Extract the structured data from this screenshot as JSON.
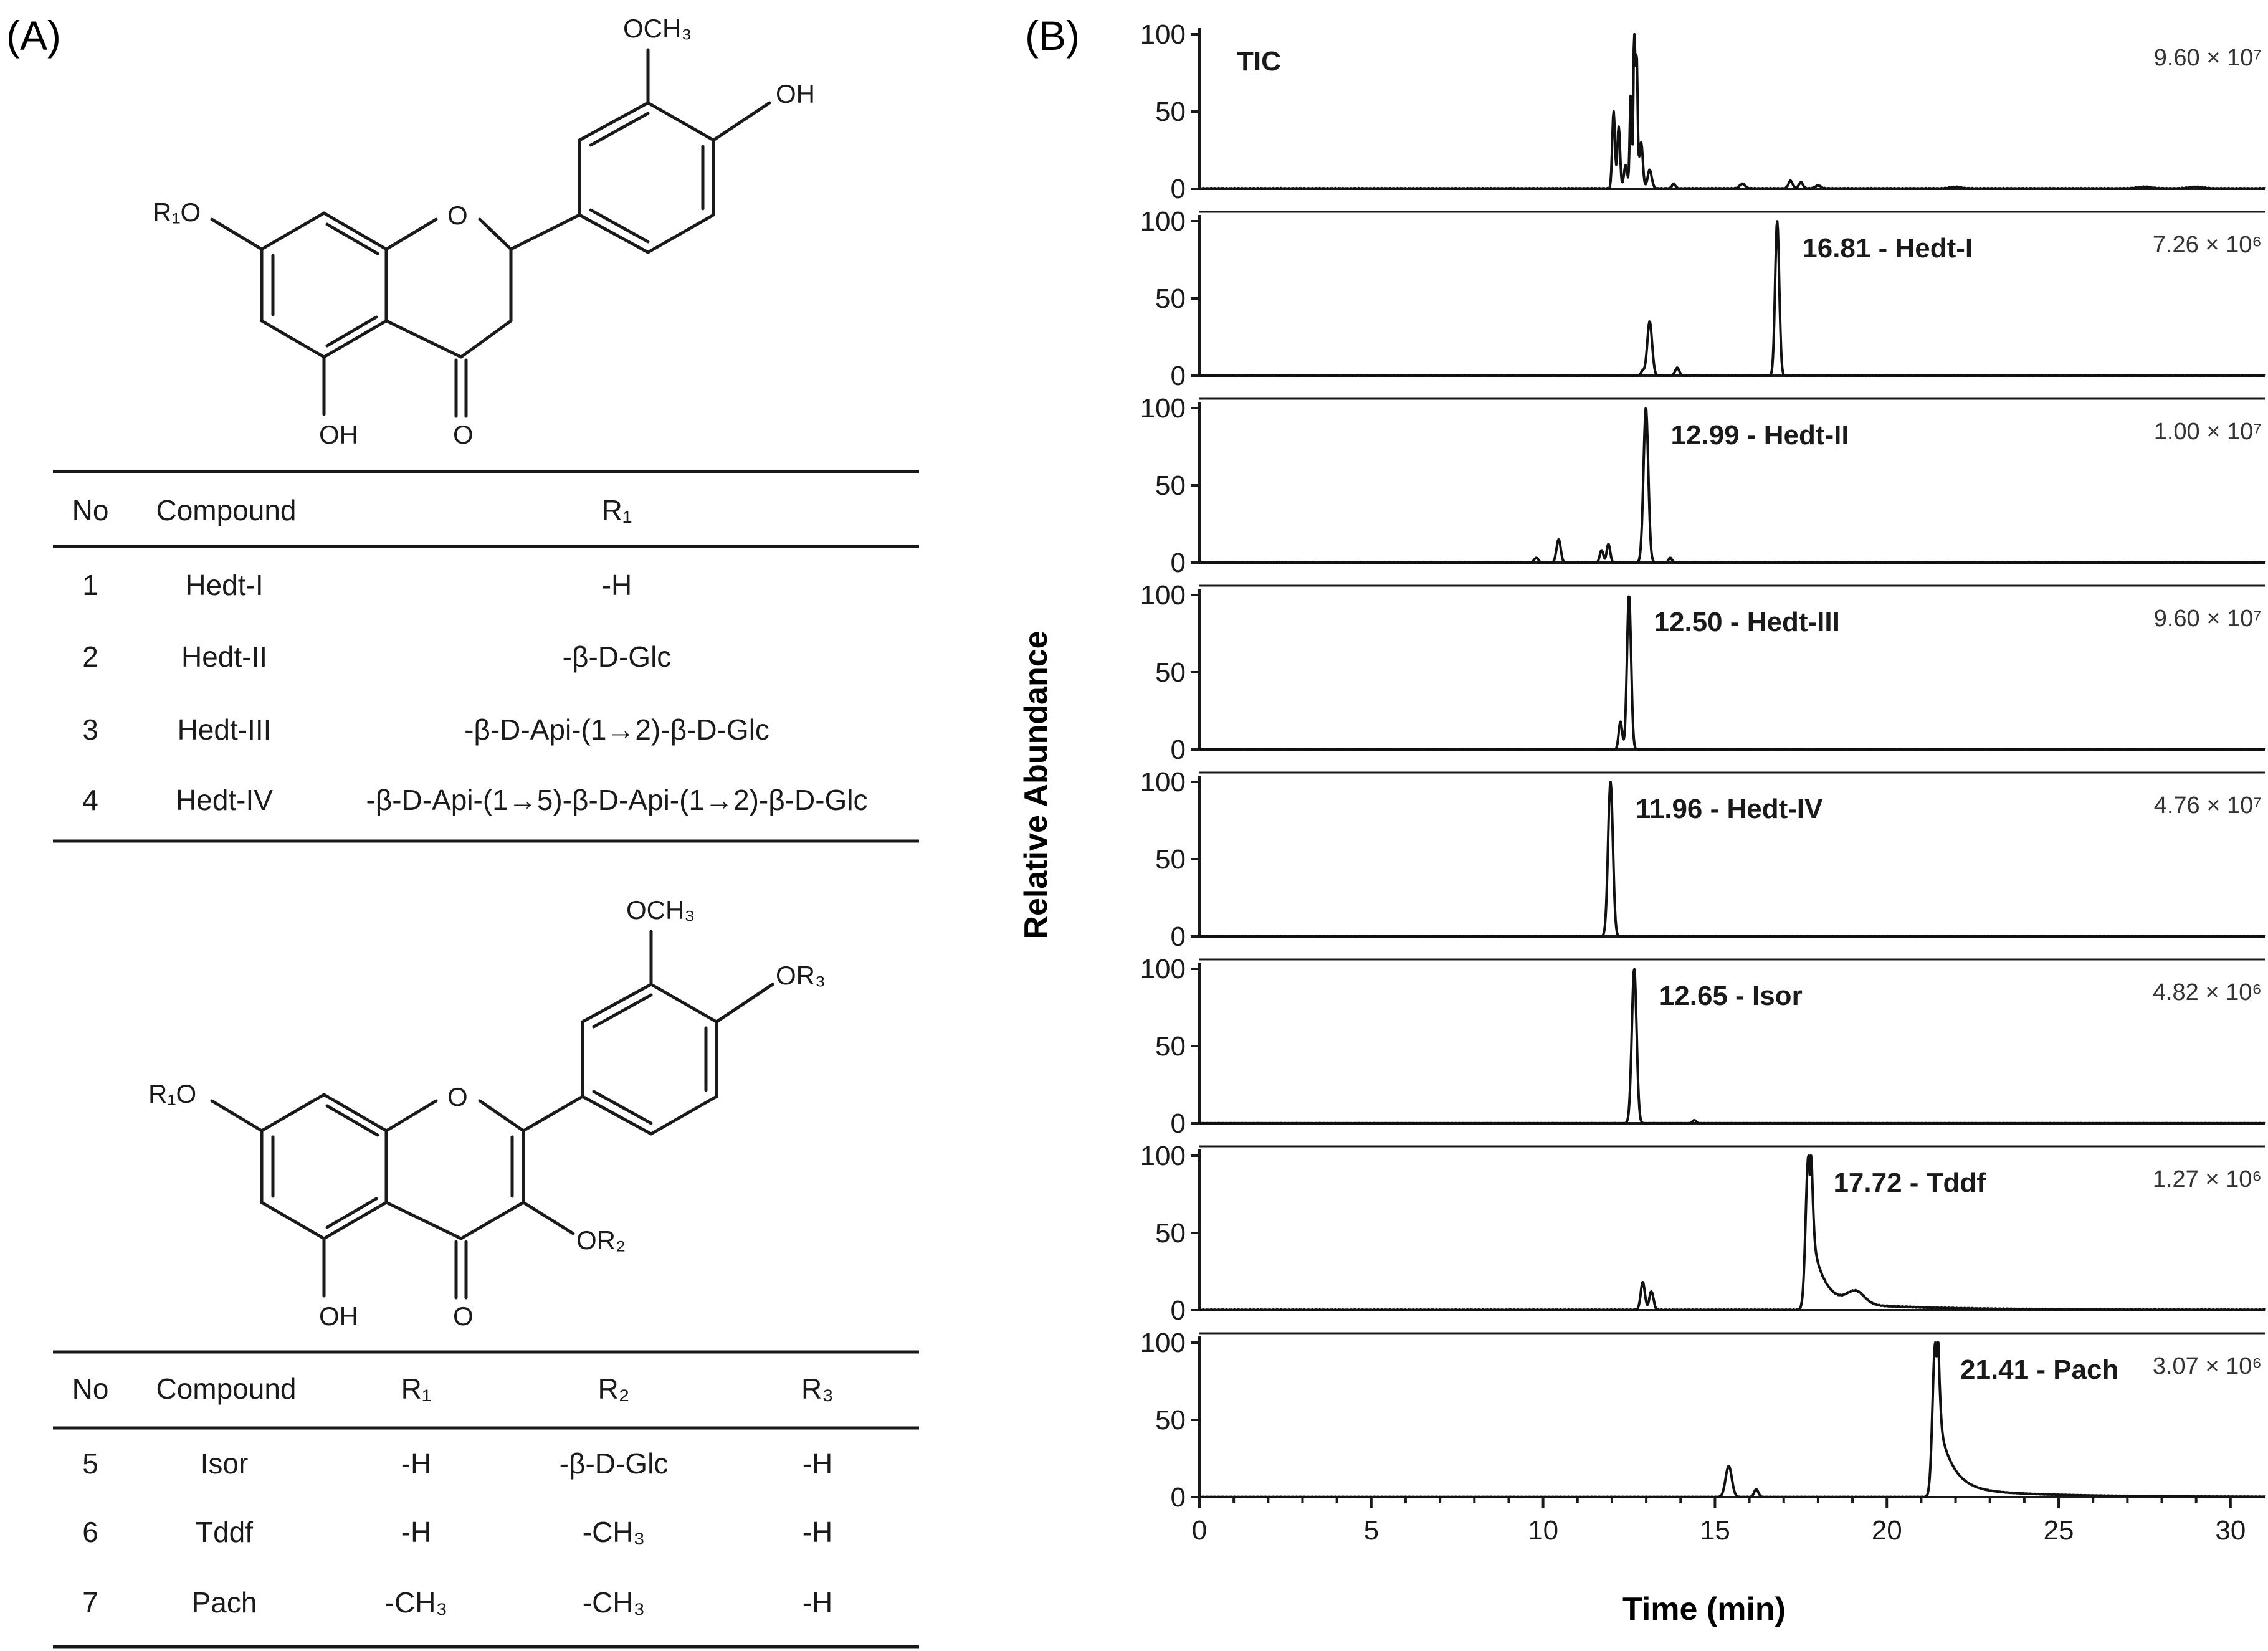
{
  "panel_a": {
    "label": "(A)",
    "structure1": {
      "substituents": {
        "r1o": "R₁O",
        "och3": "OCH₃",
        "oh_top": "OH",
        "oh_bottom": "OH",
        "o_carbonyl": "O",
        "o_ring": "O"
      }
    },
    "table1": {
      "headers": [
        "No",
        "Compound",
        "R₁"
      ],
      "rows": [
        [
          "1",
          "Hedt-I",
          "-H"
        ],
        [
          "2",
          "Hedt-II",
          "-β-D-Glc"
        ],
        [
          "3",
          "Hedt-III",
          "-β-D-Api-(1→2)-β-D-Glc"
        ],
        [
          "4",
          "Hedt-IV",
          "-β-D-Api-(1→5)-β-D-Api-(1→2)-β-D-Glc"
        ]
      ]
    },
    "structure2": {
      "substituents": {
        "r1o": "R₁O",
        "och3": "OCH₃",
        "or3": "OR₃",
        "or2": "OR₂",
        "oh_bottom": "OH",
        "o_carbonyl": "O",
        "o_ring": "O"
      }
    },
    "table2": {
      "headers": [
        "No",
        "Compound",
        "R₁",
        "R₂",
        "R₃"
      ],
      "rows": [
        [
          "5",
          "Isor",
          "-H",
          "-β-D-Glc",
          "-H"
        ],
        [
          "6",
          "Tddf",
          "-H",
          "-CH₃",
          "-H"
        ],
        [
          "7",
          "Pach",
          "-CH₃",
          "-CH₃",
          "-H"
        ]
      ]
    }
  },
  "chart_data": {
    "type": "line",
    "panel_label": "(B)",
    "xlabel": "Time (min)",
    "ylabel": "Relative Abundance",
    "xlim": [
      0,
      31
    ],
    "ylim": [
      0,
      100
    ],
    "x_ticks": [
      "0",
      "5",
      "10",
      "15",
      "20",
      "25",
      "30"
    ],
    "y_ticks": [
      "0",
      "50",
      "100"
    ],
    "series": [
      {
        "name": "TIC",
        "annotation": "TIC",
        "scale": "9.60 × 10⁷",
        "peaks": [
          [
            12.05,
            50,
            0.04
          ],
          [
            12.2,
            40,
            0.04
          ],
          [
            12.4,
            15,
            0.05
          ],
          [
            12.55,
            60,
            0.03
          ],
          [
            12.65,
            100,
            0.025
          ],
          [
            12.72,
            85,
            0.03
          ],
          [
            12.85,
            30,
            0.05
          ],
          [
            13.1,
            12,
            0.06
          ],
          [
            13.8,
            3,
            0.05
          ],
          [
            15.8,
            3,
            0.08
          ],
          [
            17.2,
            5,
            0.06
          ],
          [
            17.5,
            4,
            0.06
          ],
          [
            18.0,
            2,
            0.08
          ],
          [
            22.0,
            1,
            0.15
          ],
          [
            27.5,
            1,
            0.2
          ],
          [
            29.0,
            1,
            0.2
          ]
        ],
        "baseline": 1
      },
      {
        "name": "Hedt-I",
        "annotation": "16.81 - Hedt-I",
        "scale": "7.26 × 10⁶",
        "peaks": [
          [
            12.9,
            3,
            0.05
          ],
          [
            13.1,
            35,
            0.07
          ],
          [
            13.9,
            5,
            0.06
          ],
          [
            16.81,
            100,
            0.06
          ]
        ],
        "baseline": 0.5
      },
      {
        "name": "Hedt-II",
        "annotation": "12.99 - Hedt-II",
        "scale": "1.00 × 10⁷",
        "peaks": [
          [
            9.8,
            3,
            0.06
          ],
          [
            10.45,
            15,
            0.06
          ],
          [
            11.7,
            8,
            0.05
          ],
          [
            11.9,
            12,
            0.05
          ],
          [
            12.99,
            100,
            0.07
          ],
          [
            13.7,
            3,
            0.05
          ]
        ],
        "baseline": 0.5
      },
      {
        "name": "Hedt-III",
        "annotation": "12.50 - Hedt-III",
        "scale": "9.60 × 10⁷",
        "peaks": [
          [
            12.25,
            18,
            0.05
          ],
          [
            12.5,
            100,
            0.06
          ]
        ],
        "baseline": 0.3
      },
      {
        "name": "Hedt-IV",
        "annotation": "11.96 - Hedt-IV",
        "scale": "4.76 × 10⁷",
        "peaks": [
          [
            11.96,
            100,
            0.07
          ]
        ],
        "baseline": 0.3
      },
      {
        "name": "Isor",
        "annotation": "12.65 - Isor",
        "scale": "4.82 × 10⁶",
        "peaks": [
          [
            12.65,
            100,
            0.07
          ],
          [
            14.4,
            2,
            0.05
          ]
        ],
        "baseline": 0.3
      },
      {
        "name": "Tddf",
        "annotation": "17.72 - Tddf",
        "scale": "1.27 × 10⁶",
        "peaks": [
          [
            12.9,
            18,
            0.06
          ],
          [
            13.15,
            12,
            0.06
          ],
          [
            17.72,
            100,
            0.08
          ],
          [
            19.1,
            8,
            0.25
          ]
        ],
        "tail": [
          17.72,
          1.0,
          0.35
        ],
        "baseline": 1
      },
      {
        "name": "Pach",
        "annotation": "21.41 - Pach",
        "scale": "3.07 × 10⁶",
        "peaks": [
          [
            15.4,
            20,
            0.09
          ],
          [
            16.2,
            5,
            0.06
          ],
          [
            21.41,
            100,
            0.08
          ]
        ],
        "tail": [
          21.41,
          1.0,
          0.4
        ],
        "baseline": 0.5
      }
    ]
  }
}
